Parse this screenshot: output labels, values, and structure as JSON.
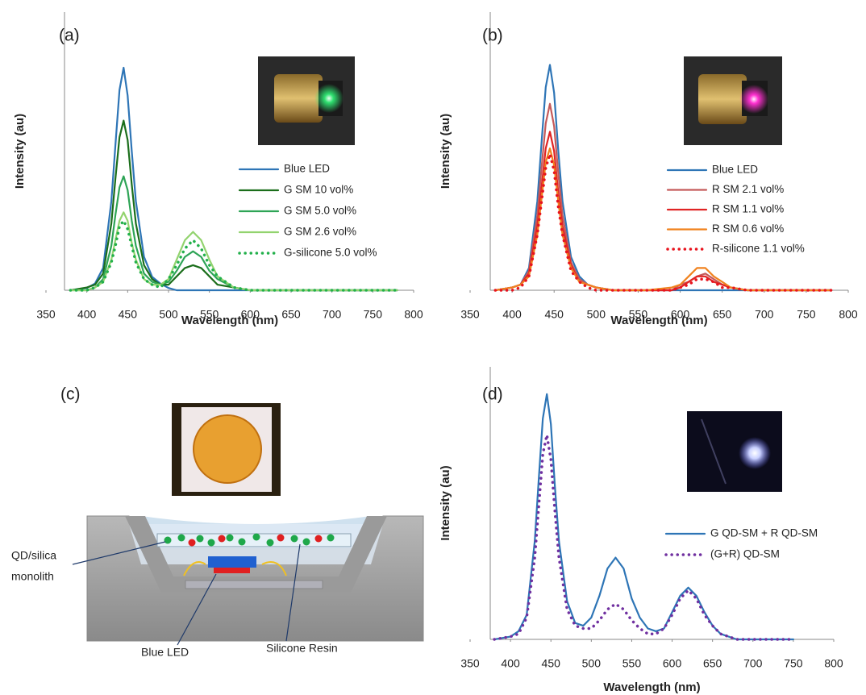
{
  "chart_data": [
    {
      "type": "line",
      "panel_label": "(a)",
      "xlabel": "Wavelength (nm)",
      "ylabel": "Intensity (au)",
      "xlim": [
        350,
        800
      ],
      "ylim": [
        0,
        1
      ],
      "xticks": [
        350,
        400,
        450,
        500,
        550,
        600,
        650,
        700,
        750,
        800
      ],
      "x": [
        380,
        400,
        410,
        420,
        430,
        435,
        440,
        445,
        450,
        455,
        460,
        470,
        480,
        490,
        500,
        510,
        520,
        530,
        540,
        550,
        560,
        580,
        600,
        650,
        700,
        780
      ],
      "series": [
        {
          "name": "Blue LED",
          "color": "#2e75b6",
          "style": "solid",
          "values": [
            0,
            0.008,
            0.024,
            0.08,
            0.32,
            0.52,
            0.72,
            0.8,
            0.7,
            0.5,
            0.32,
            0.12,
            0.048,
            0.024,
            0.008,
            0,
            0,
            0,
            0,
            0,
            0,
            0,
            0,
            0,
            0,
            0
          ]
        },
        {
          "name": "G SM 10 vol%",
          "color": "#1b6e1b",
          "style": "solid",
          "values": [
            0,
            0.01,
            0.02,
            0.06,
            0.24,
            0.4,
            0.55,
            0.61,
            0.54,
            0.38,
            0.24,
            0.09,
            0.04,
            0.02,
            0.02,
            0.05,
            0.08,
            0.09,
            0.08,
            0.05,
            0.02,
            0.01,
            0,
            0,
            0,
            0
          ]
        },
        {
          "name": "G SM 5.0 vol%",
          "color": "#2ea456",
          "style": "solid",
          "values": [
            0,
            0,
            0.01,
            0.04,
            0.16,
            0.27,
            0.37,
            0.41,
            0.36,
            0.25,
            0.16,
            0.06,
            0.03,
            0.02,
            0.03,
            0.07,
            0.12,
            0.14,
            0.12,
            0.07,
            0.04,
            0.01,
            0,
            0,
            0,
            0
          ]
        },
        {
          "name": "G SM 2.6 vol%",
          "color": "#92d36e",
          "style": "solid",
          "values": [
            0,
            0,
            0.01,
            0.03,
            0.11,
            0.18,
            0.25,
            0.28,
            0.25,
            0.17,
            0.11,
            0.04,
            0.02,
            0.02,
            0.04,
            0.11,
            0.18,
            0.21,
            0.18,
            0.11,
            0.05,
            0.01,
            0,
            0,
            0,
            0
          ]
        },
        {
          "name": "G-silicone 5.0 vol%",
          "color": "#22b04b",
          "style": "dotted",
          "values": [
            0,
            0,
            0.01,
            0.03,
            0.1,
            0.16,
            0.23,
            0.25,
            0.22,
            0.16,
            0.1,
            0.04,
            0.02,
            0.01,
            0.04,
            0.09,
            0.15,
            0.18,
            0.15,
            0.09,
            0.05,
            0.01,
            0,
            0,
            0,
            0
          ]
        }
      ]
    },
    {
      "type": "line",
      "panel_label": "(b)",
      "xlabel": "Wavelength (nm)",
      "ylabel": "Intensity (au)",
      "xlim": [
        350,
        800
      ],
      "ylim": [
        0,
        1
      ],
      "xticks": [
        350,
        400,
        450,
        500,
        550,
        600,
        650,
        700,
        750,
        800
      ],
      "x": [
        380,
        400,
        410,
        420,
        430,
        435,
        440,
        445,
        450,
        455,
        460,
        470,
        480,
        490,
        500,
        520,
        560,
        590,
        600,
        610,
        620,
        630,
        640,
        650,
        660,
        680,
        720,
        780
      ],
      "series": [
        {
          "name": "Blue LED",
          "color": "#2e75b6",
          "style": "solid",
          "values": [
            0,
            0.01,
            0.02,
            0.08,
            0.32,
            0.53,
            0.73,
            0.81,
            0.71,
            0.5,
            0.32,
            0.12,
            0.05,
            0.02,
            0.01,
            0,
            0,
            0,
            0,
            0,
            0,
            0,
            0,
            0,
            0,
            0,
            0,
            0
          ]
        },
        {
          "name": "R SM 2.1 vol%",
          "color": "#c55a5a",
          "style": "solid",
          "values": [
            0,
            0.01,
            0.02,
            0.07,
            0.27,
            0.44,
            0.6,
            0.67,
            0.59,
            0.42,
            0.27,
            0.1,
            0.04,
            0.02,
            0.01,
            0,
            0,
            0,
            0.02,
            0.03,
            0.05,
            0.06,
            0.04,
            0.02,
            0.01,
            0,
            0,
            0
          ]
        },
        {
          "name": "R SM 1.1 vol%",
          "color": "#e02424",
          "style": "solid",
          "values": [
            0,
            0.01,
            0.02,
            0.06,
            0.23,
            0.37,
            0.51,
            0.57,
            0.5,
            0.35,
            0.23,
            0.09,
            0.03,
            0.02,
            0.01,
            0,
            0,
            0,
            0.01,
            0.03,
            0.05,
            0.05,
            0.03,
            0.02,
            0.01,
            0,
            0,
            0
          ]
        },
        {
          "name": "R SM 0.6 vol%",
          "color": "#f0821e",
          "style": "solid",
          "values": [
            0,
            0.01,
            0.02,
            0.05,
            0.2,
            0.33,
            0.46,
            0.51,
            0.45,
            0.32,
            0.2,
            0.08,
            0.03,
            0.02,
            0.01,
            0,
            0,
            0.01,
            0.02,
            0.05,
            0.08,
            0.08,
            0.05,
            0.03,
            0.01,
            0,
            0,
            0
          ]
        },
        {
          "name": "R-silicone  1.1 vol%",
          "color": "#e8141e",
          "style": "dotted",
          "values": [
            0,
            0,
            0.01,
            0.05,
            0.2,
            0.32,
            0.44,
            0.49,
            0.43,
            0.3,
            0.2,
            0.07,
            0.03,
            0.01,
            0,
            0,
            0,
            0,
            0.01,
            0.02,
            0.04,
            0.04,
            0.03,
            0.01,
            0.01,
            0,
            0,
            0
          ]
        }
      ]
    },
    {
      "type": "line",
      "panel_label": "(d)",
      "xlabel": "Wavelength (nm)",
      "ylabel": "Intensity (au)",
      "xlim": [
        350,
        800
      ],
      "ylim": [
        0,
        1
      ],
      "xticks": [
        350,
        400,
        450,
        500,
        550,
        600,
        650,
        700,
        750,
        800
      ],
      "x": [
        380,
        400,
        410,
        420,
        430,
        435,
        440,
        445,
        450,
        455,
        460,
        470,
        480,
        490,
        500,
        510,
        520,
        530,
        540,
        550,
        560,
        570,
        580,
        590,
        600,
        610,
        620,
        630,
        640,
        650,
        660,
        680,
        700,
        750
      ],
      "series": [
        {
          "name": "G QD-SM + R QD-SM",
          "color": "#2e75b6",
          "style": "solid",
          "values": [
            0,
            0.01,
            0.03,
            0.09,
            0.36,
            0.59,
            0.81,
            0.9,
            0.79,
            0.56,
            0.36,
            0.14,
            0.06,
            0.05,
            0.08,
            0.16,
            0.26,
            0.3,
            0.26,
            0.15,
            0.08,
            0.04,
            0.03,
            0.04,
            0.1,
            0.16,
            0.19,
            0.16,
            0.1,
            0.05,
            0.02,
            0,
            0,
            0
          ]
        },
        {
          "name": "(G+R) QD-SM",
          "color": "#7030a0",
          "style": "dotted",
          "values": [
            0,
            0.01,
            0.02,
            0.08,
            0.3,
            0.49,
            0.68,
            0.75,
            0.66,
            0.47,
            0.3,
            0.11,
            0.05,
            0.04,
            0.04,
            0.07,
            0.11,
            0.13,
            0.11,
            0.07,
            0.04,
            0.02,
            0.02,
            0.04,
            0.09,
            0.15,
            0.18,
            0.15,
            0.09,
            0.05,
            0.02,
            0,
            0,
            0
          ]
        }
      ]
    }
  ],
  "diagram": {
    "panel_label": "(c)",
    "monolith_label": [
      "QD/silica",
      "monolith"
    ],
    "led_label": "Blue LED",
    "resin_label": "Silicone Resin"
  }
}
